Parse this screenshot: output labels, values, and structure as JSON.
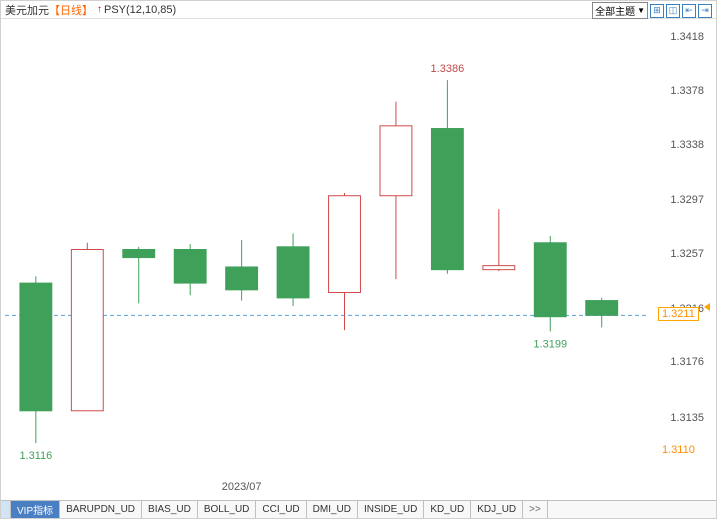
{
  "header": {
    "title": "美元加元",
    "period": "【日线】",
    "indicator": "PSY(12,10,85)",
    "theme_label": "全部主题"
  },
  "chart": {
    "type": "candlestick",
    "y_min": 1.309,
    "y_max": 1.343,
    "y_ticks": [
      1.3418,
      1.3378,
      1.3338,
      1.3297,
      1.3257,
      1.3216,
      1.3176,
      1.3135
    ],
    "x_label": "2023/07",
    "x_label_index": 4,
    "background_color": "#ffffff",
    "grid_color": "#e0e0e0",
    "candle_up_fill": "#ffffff",
    "candle_up_border": "#d04a4a",
    "candle_down_fill": "#3fa05a",
    "candle_down_border": "#3fa05a",
    "candle_width_ratio": 0.62,
    "candles": [
      {
        "o": 1.3235,
        "h": 1.324,
        "l": 1.3116,
        "c": 1.314
      },
      {
        "o": 1.314,
        "h": 1.3265,
        "l": 1.3145,
        "c": 1.326
      },
      {
        "o": 1.326,
        "h": 1.3262,
        "l": 1.322,
        "c": 1.3254
      },
      {
        "o": 1.326,
        "h": 1.3264,
        "l": 1.3226,
        "c": 1.3235
      },
      {
        "o": 1.3247,
        "h": 1.3267,
        "l": 1.3222,
        "c": 1.323
      },
      {
        "o": 1.3262,
        "h": 1.3272,
        "l": 1.3218,
        "c": 1.3224
      },
      {
        "o": 1.3228,
        "h": 1.3302,
        "l": 1.32,
        "c": 1.33
      },
      {
        "o": 1.33,
        "h": 1.337,
        "l": 1.3238,
        "c": 1.3352
      },
      {
        "o": 1.335,
        "h": 1.3386,
        "l": 1.3242,
        "c": 1.3245
      },
      {
        "o": 1.3245,
        "h": 1.329,
        "l": 1.3244,
        "c": 1.3248
      },
      {
        "o": 1.3265,
        "h": 1.327,
        "l": 1.3199,
        "c": 1.321
      },
      {
        "o": 1.3222,
        "h": 1.3224,
        "l": 1.3202,
        "c": 1.3211
      }
    ],
    "annotations": [
      {
        "text": "1.3386",
        "price": 1.3386,
        "candle": 8,
        "pos": "above",
        "color": "#c04a4a"
      },
      {
        "text": "1.3116",
        "price": 1.3116,
        "candle": 0,
        "pos": "below",
        "color": "#3fa05a"
      },
      {
        "text": "1.3199",
        "price": 1.3199,
        "candle": 10,
        "pos": "below",
        "color": "#3fa05a"
      }
    ],
    "last_price_line": {
      "price": 1.3211,
      "color": "#5aa0d8"
    },
    "price_tag": {
      "value": "1.3211",
      "price": 1.3211
    },
    "secondary_tag": {
      "value": "1.3110",
      "price": 1.311
    }
  },
  "footer": {
    "tabs": [
      "VIP指标",
      "BARUPDN_UD",
      "BIAS_UD",
      "BOLL_UD",
      "CCI_UD",
      "DMI_UD",
      "INSIDE_UD",
      "KD_UD",
      "KDJ_UD"
    ],
    "more": ">>"
  }
}
